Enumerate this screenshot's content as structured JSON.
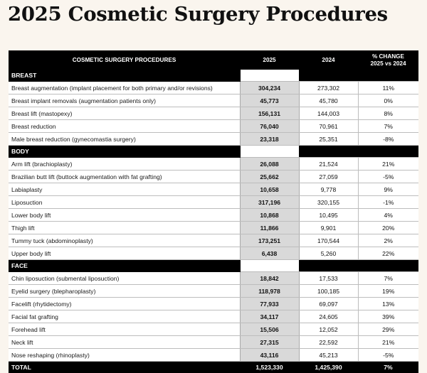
{
  "title": "2025 Cosmetic Surgery Procedures",
  "headers": {
    "procedures": "COSMETIC SURGERY PROCEDURES",
    "y2025": "2025",
    "y2024": "2024",
    "pct_line1": "% CHANGE",
    "pct_line2": "2025 vs 2024"
  },
  "sections": [
    {
      "label": "BREAST",
      "rows": [
        {
          "name": "Breast augmentation (implant placement for both primary and/or revisions)",
          "v2025": "304,234",
          "v2024": "273,302",
          "pct": "11%"
        },
        {
          "name": "Breast implant removals (augmentation patients only)",
          "v2025": "45,773",
          "v2024": "45,780",
          "pct": "0%"
        },
        {
          "name": "Breast lift (mastopexy)",
          "v2025": "156,131",
          "v2024": "144,003",
          "pct": "8%"
        },
        {
          "name": "Breast reduction",
          "v2025": "76,040",
          "v2024": "70,961",
          "pct": "7%"
        },
        {
          "name": "Male breast reduction (gynecomastia surgery)",
          "v2025": "23,318",
          "v2024": "25,351",
          "pct": "-8%"
        }
      ]
    },
    {
      "label": "BODY",
      "rows": [
        {
          "name": "Arm lift (brachioplasty)",
          "v2025": "26,088",
          "v2024": "21,524",
          "pct": "21%"
        },
        {
          "name": "Brazilian butt lift (buttock augmentation with fat grafting)",
          "v2025": "25,662",
          "v2024": "27,059",
          "pct": "-5%"
        },
        {
          "name": "Labiaplasty",
          "v2025": "10,658",
          "v2024": "9,778",
          "pct": "9%"
        },
        {
          "name": "Liposuction",
          "v2025": "317,196",
          "v2024": "320,155",
          "pct": "-1%"
        },
        {
          "name": "Lower body lift",
          "v2025": "10,868",
          "v2024": "10,495",
          "pct": "4%"
        },
        {
          "name": "Thigh lift",
          "v2025": "11,866",
          "v2024": "9,901",
          "pct": "20%"
        },
        {
          "name": "Tummy tuck (abdominoplasty)",
          "v2025": "173,251",
          "v2024": "170,544",
          "pct": "2%"
        },
        {
          "name": "Upper body lift",
          "v2025": "6,438",
          "v2024": "5,260",
          "pct": "22%"
        }
      ]
    },
    {
      "label": "FACE",
      "rows": [
        {
          "name": "Chin liposuction (submental liposuction)",
          "v2025": "18,842",
          "v2024": "17,533",
          "pct": "7%"
        },
        {
          "name": "Eyelid surgery (blepharoplasty)",
          "v2025": "118,978",
          "v2024": "100,185",
          "pct": "19%"
        },
        {
          "name": "Facelift (rhytidectomy)",
          "v2025": "77,933",
          "v2024": "69,097",
          "pct": "13%"
        },
        {
          "name": "Facial fat grafting",
          "v2025": "34,117",
          "v2024": "24,605",
          "pct": "39%"
        },
        {
          "name": "Forehead lift",
          "v2025": "15,506",
          "v2024": "12,052",
          "pct": "29%"
        },
        {
          "name": "Neck lift",
          "v2025": "27,315",
          "v2024": "22,592",
          "pct": "21%"
        },
        {
          "name": "Nose reshaping (rhinoplasty)",
          "v2025": "43,116",
          "v2024": "45,213",
          "pct": "-5%"
        }
      ]
    }
  ],
  "total": {
    "label": "TOTAL",
    "v2025": "1,523,330",
    "v2024": "1,425,390",
    "pct": "7%"
  }
}
